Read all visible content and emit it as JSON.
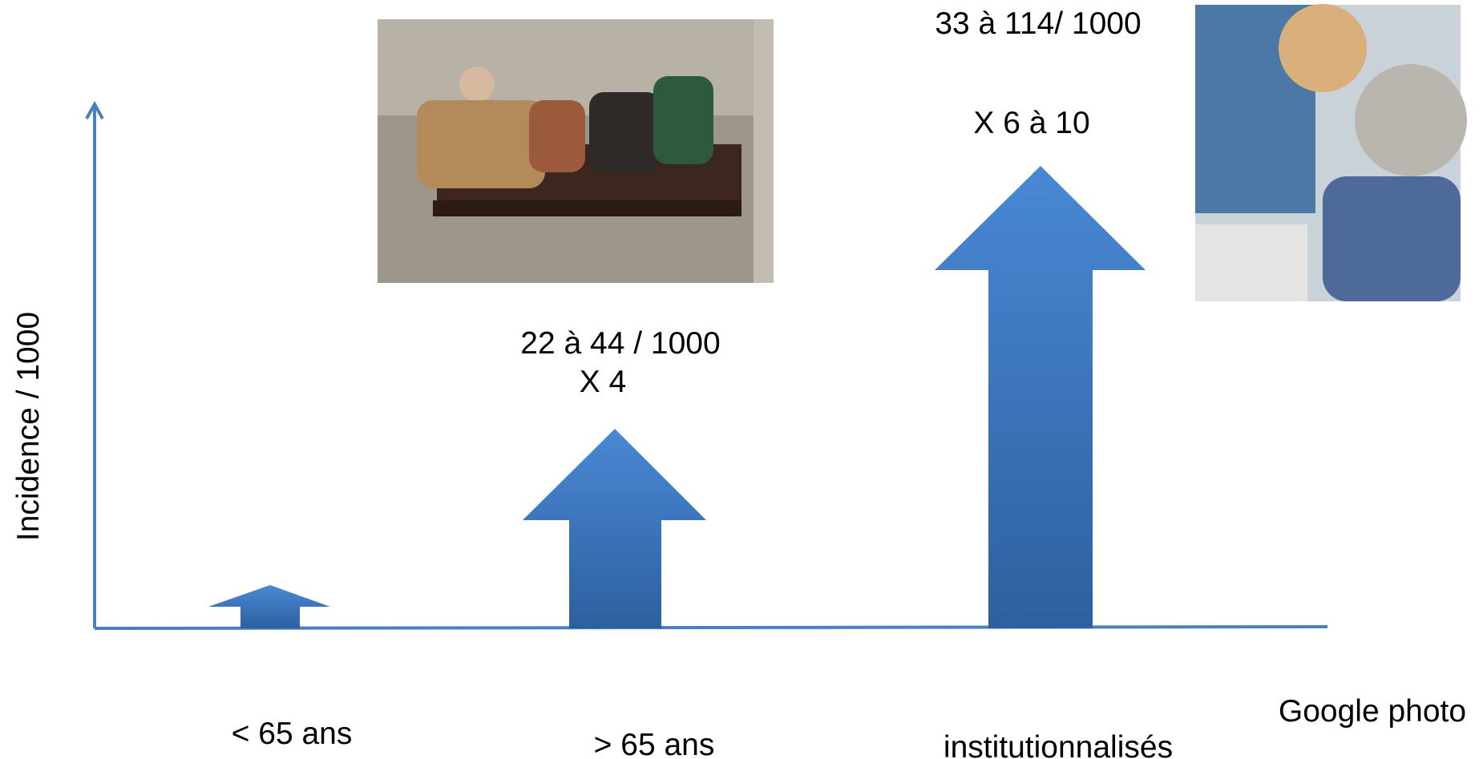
{
  "y_axis_label": "Incidence / 1000",
  "groups": [
    {
      "label": "< 65 ans"
    },
    {
      "label": "> 65 ans",
      "annotation": "22 à 44 / 1000",
      "factor": "X 4"
    },
    {
      "label": "institutionnalisés",
      "annotation": "33 à 114/ 1000",
      "factor": "X 6 à 10"
    }
  ],
  "credit": "Google photo"
}
